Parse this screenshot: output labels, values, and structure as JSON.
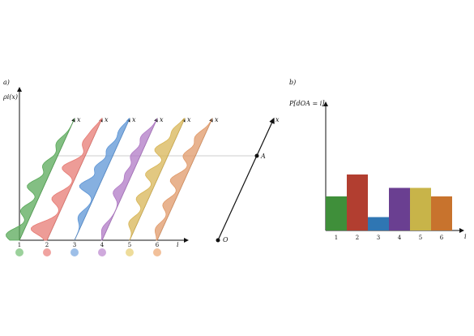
{
  "panel_a": {
    "label": "a)",
    "y_axis_label": "ρi(x)",
    "x_axis_label": "i",
    "line_label": "x",
    "ref_line_label": "x",
    "point_A": "A",
    "point_O": "O",
    "ticks": [
      "1",
      "2",
      "3",
      "4",
      "5",
      "6"
    ],
    "colors": [
      "#5aa95a",
      "#e77b74",
      "#5d95d6",
      "#b07ac5",
      "#d8b657",
      "#e09a6a"
    ],
    "dot_colors": [
      "#9bd19b",
      "#f0a3a0",
      "#9dbfe8",
      "#cfa9dc",
      "#eedc9a",
      "#f2c09a"
    ]
  },
  "panel_b": {
    "label": "b)",
    "y_axis_label": "P[dOA = i]",
    "x_axis_label": "i"
  },
  "chart_data": {
    "type": "bar",
    "categories": [
      "1",
      "2",
      "3",
      "4",
      "5",
      "6"
    ],
    "values": [
      0.28,
      0.46,
      0.11,
      0.35,
      0.35,
      0.28
    ],
    "colors": [
      "#3f8f3a",
      "#b23e30",
      "#2f76b3",
      "#6a3f91",
      "#c8b449",
      "#c8732d"
    ],
    "title": "",
    "xlabel": "i",
    "ylabel": "P[dOA = i]",
    "ylim": [
      0,
      1
    ]
  }
}
